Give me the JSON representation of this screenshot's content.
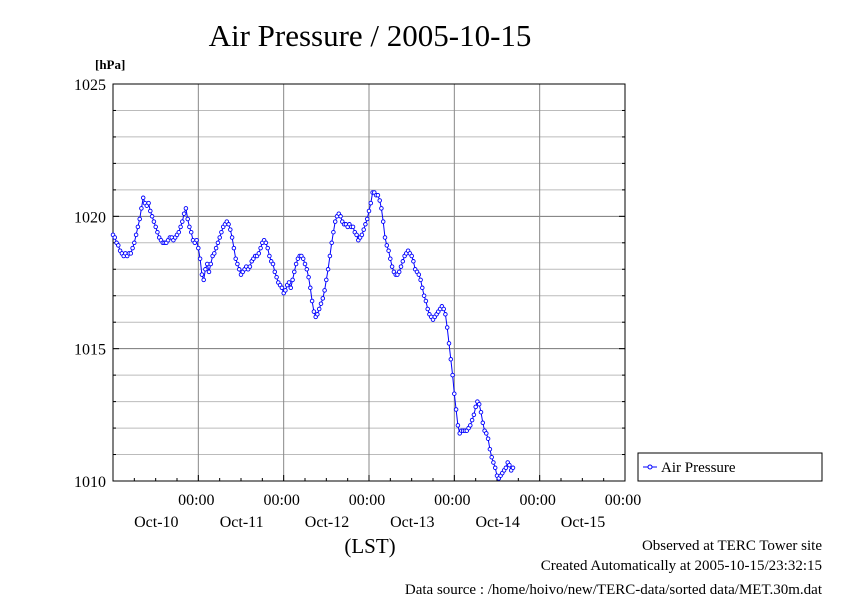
{
  "chart_data": {
    "type": "line",
    "title": "Air Pressure / 2005-10-15",
    "ylabel": "[hPa]",
    "xlabel": "(LST)",
    "ylim": [
      1010,
      1025
    ],
    "yticks": [
      1010,
      1015,
      1020,
      1025
    ],
    "xlim": [
      "2005-10-09 00:00",
      "2005-10-15 00:00"
    ],
    "xticks": [
      {
        "time": "00:00",
        "date": "Oct-10"
      },
      {
        "time": "00:00",
        "date": "Oct-11"
      },
      {
        "time": "00:00",
        "date": "Oct-12"
      },
      {
        "time": "00:00",
        "date": "Oct-13"
      },
      {
        "time": "00:00",
        "date": "Oct-14"
      },
      {
        "time": "00:00",
        "date": "Oct-15"
      }
    ],
    "grid": true,
    "legend_position": "right",
    "series": [
      {
        "name": "Air Pressure",
        "color": "#0000ff",
        "x_step_hours": 0.5,
        "x_start": "2005-10-09 00:00",
        "values": [
          1019.3,
          1019.2,
          1019.0,
          1018.9,
          1018.7,
          1018.6,
          1018.5,
          1018.6,
          1018.5,
          1018.6,
          1018.6,
          1018.8,
          1019.0,
          1019.3,
          1019.6,
          1019.9,
          1020.3,
          1020.7,
          1020.5,
          1020.4,
          1020.5,
          1020.2,
          1020.0,
          1019.8,
          1019.6,
          1019.4,
          1019.2,
          1019.1,
          1019.0,
          1019.0,
          1019.0,
          1019.1,
          1019.2,
          1019.2,
          1019.1,
          1019.2,
          1019.3,
          1019.4,
          1019.6,
          1019.8,
          1020.1,
          1020.3,
          1019.9,
          1019.6,
          1019.4,
          1019.1,
          1019.0,
          1019.1,
          1018.8,
          1018.4,
          1017.8,
          1017.6,
          1018.0,
          1018.2,
          1017.9,
          1018.2,
          1018.5,
          1018.6,
          1018.8,
          1019.0,
          1019.2,
          1019.4,
          1019.6,
          1019.7,
          1019.8,
          1019.7,
          1019.5,
          1019.2,
          1018.8,
          1018.4,
          1018.2,
          1018.0,
          1017.8,
          1017.9,
          1018.0,
          1018.1,
          1018.0,
          1018.1,
          1018.3,
          1018.4,
          1018.5,
          1018.5,
          1018.6,
          1018.8,
          1019.0,
          1019.1,
          1019.0,
          1018.8,
          1018.5,
          1018.3,
          1018.2,
          1017.9,
          1017.7,
          1017.5,
          1017.4,
          1017.3,
          1017.1,
          1017.2,
          1017.4,
          1017.5,
          1017.3,
          1017.6,
          1017.9,
          1018.2,
          1018.4,
          1018.5,
          1018.5,
          1018.4,
          1018.2,
          1018.0,
          1017.7,
          1017.3,
          1016.8,
          1016.4,
          1016.2,
          1016.3,
          1016.5,
          1016.7,
          1016.9,
          1017.2,
          1017.6,
          1018.0,
          1018.5,
          1019.0,
          1019.4,
          1019.8,
          1020.0,
          1020.1,
          1020.0,
          1019.8,
          1019.7,
          1019.7,
          1019.6,
          1019.7,
          1019.6,
          1019.6,
          1019.4,
          1019.3,
          1019.1,
          1019.2,
          1019.3,
          1019.5,
          1019.7,
          1019.9,
          1020.2,
          1020.5,
          1020.9,
          1020.9,
          1020.8,
          1020.8,
          1020.6,
          1020.3,
          1019.8,
          1019.2,
          1018.9,
          1018.7,
          1018.4,
          1018.1,
          1017.9,
          1017.8,
          1017.8,
          1017.9,
          1018.1,
          1018.3,
          1018.5,
          1018.6,
          1018.7,
          1018.6,
          1018.5,
          1018.3,
          1018.0,
          1017.9,
          1017.8,
          1017.6,
          1017.3,
          1017.0,
          1016.8,
          1016.5,
          1016.3,
          1016.2,
          1016.1,
          1016.2,
          1016.3,
          1016.4,
          1016.5,
          1016.6,
          1016.5,
          1016.3,
          1015.8,
          1015.2,
          1014.6,
          1014.0,
          1013.3,
          1012.7,
          1012.1,
          1011.8,
          1011.9,
          1011.9,
          1011.9,
          1011.9,
          1012.0,
          1012.1,
          1012.3,
          1012.5,
          1012.8,
          1013.0,
          1012.9,
          1012.6,
          1012.2,
          1011.9,
          1011.8,
          1011.6,
          1011.2,
          1010.9,
          1010.7,
          1010.5,
          1010.2,
          1010.1,
          1010.2,
          1010.3,
          1010.4,
          1010.5,
          1010.7,
          1010.6,
          1010.4,
          1010.5
        ]
      }
    ],
    "legend": [
      {
        "label": "Air Pressure",
        "marker": "circle-line"
      }
    ],
    "footer": [
      "Observed at TERC Tower site",
      "Created Automatically at 2005-10-15/23:32:15",
      "Data source : /home/hoivo/new/TERC-data/sorted  data/MET.30m.dat"
    ]
  }
}
